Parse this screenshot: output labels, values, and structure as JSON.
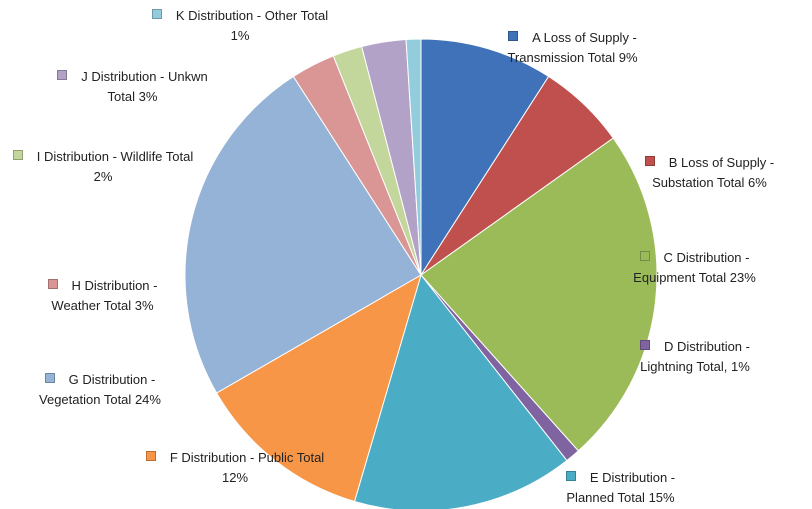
{
  "chart_data": {
    "type": "pie",
    "categories": [
      "A Loss of Supply - Transmission Total",
      "B Loss of Supply - Substation Total",
      "C Distribution - Equipment Total",
      "D Distribution - Lightning Total,",
      "E Distribution - Planned Total",
      "F Distribution - Public Total",
      "G Distribution - Vegetation Total",
      "H Distribution - Weather Total",
      "I Distribution - Wildlife Total",
      "J Distribution - Unkwn Total",
      "K Distribution - Other Total"
    ],
    "values": [
      9,
      6,
      23,
      1,
      15,
      12,
      24,
      3,
      2,
      3,
      1
    ],
    "value_labels": [
      "9%",
      "6%",
      "23%",
      "1%",
      "15%",
      "12%",
      "24%",
      "3%",
      "2%",
      "3%",
      "1%"
    ],
    "colors": [
      "#3f72b8",
      "#c0504d",
      "#9bbb59",
      "#8064a2",
      "#4bacc6",
      "#f79646",
      "#95b3d7",
      "#d99694",
      "#c3d69b",
      "#b3a2c7",
      "#93cddd"
    ]
  }
}
